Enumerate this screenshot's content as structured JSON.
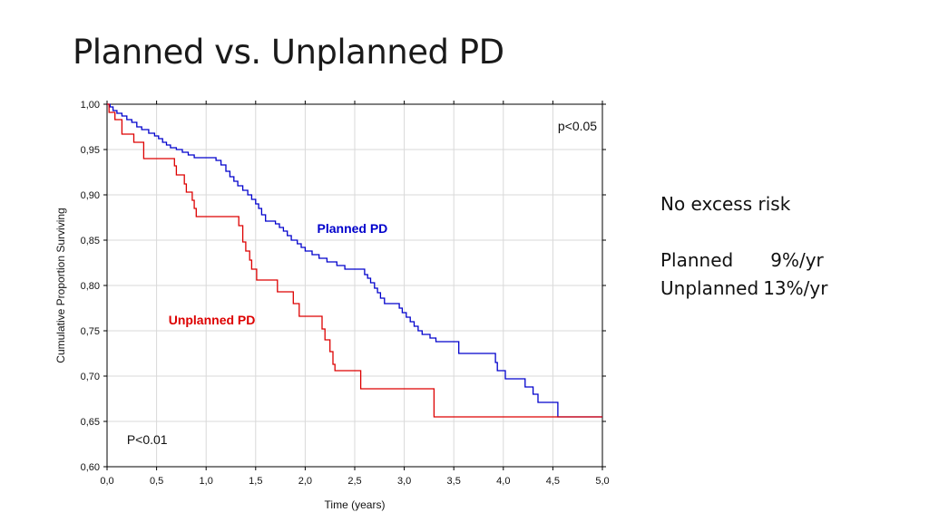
{
  "slide": {
    "title": "Planned vs. Unplanned PD"
  },
  "notes": {
    "heading": "No excess risk",
    "rows": [
      {
        "label": "Planned",
        "value": "9%/yr"
      },
      {
        "label": "Unplanned",
        "value": "13%/yr"
      }
    ]
  },
  "chart_data": {
    "type": "line",
    "step": true,
    "xlabel": "Time (years)",
    "ylabel": "Cumulative Proportion Surviving",
    "xlim": [
      0,
      5
    ],
    "ylim": [
      0.6,
      1.0
    ],
    "x_ticks": [
      "0,0",
      "0,5",
      "1,0",
      "1,5",
      "2,0",
      "2,5",
      "3,0",
      "3,5",
      "4,0",
      "4,5",
      "5,0"
    ],
    "y_ticks": [
      "0,60",
      "0,65",
      "0,70",
      "0,75",
      "0,80",
      "0,85",
      "0,90",
      "0,95",
      "1,00"
    ],
    "grid": true,
    "annotations": [
      {
        "text": "p<0.05",
        "x": 4.55,
        "y": 0.971
      },
      {
        "text": "P<0.01",
        "x": 0.2,
        "y": 0.625
      }
    ],
    "series": [
      {
        "name": "Planned PD",
        "color": "#0000cc",
        "label_pos": [
          2.12,
          0.858
        ],
        "points": [
          [
            0,
            1.0
          ],
          [
            0.03,
            0.997
          ],
          [
            0.06,
            0.993
          ],
          [
            0.1,
            0.99
          ],
          [
            0.15,
            0.987
          ],
          [
            0.2,
            0.983
          ],
          [
            0.25,
            0.98
          ],
          [
            0.3,
            0.975
          ],
          [
            0.35,
            0.972
          ],
          [
            0.42,
            0.968
          ],
          [
            0.48,
            0.965
          ],
          [
            0.52,
            0.962
          ],
          [
            0.56,
            0.958
          ],
          [
            0.6,
            0.955
          ],
          [
            0.64,
            0.952
          ],
          [
            0.7,
            0.95
          ],
          [
            0.76,
            0.947
          ],
          [
            0.82,
            0.944
          ],
          [
            0.88,
            0.941
          ],
          [
            1.1,
            0.938
          ],
          [
            1.15,
            0.933
          ],
          [
            1.2,
            0.926
          ],
          [
            1.24,
            0.92
          ],
          [
            1.28,
            0.915
          ],
          [
            1.32,
            0.91
          ],
          [
            1.37,
            0.905
          ],
          [
            1.42,
            0.9
          ],
          [
            1.46,
            0.895
          ],
          [
            1.5,
            0.89
          ],
          [
            1.53,
            0.885
          ],
          [
            1.56,
            0.878
          ],
          [
            1.6,
            0.871
          ],
          [
            1.7,
            0.868
          ],
          [
            1.74,
            0.864
          ],
          [
            1.78,
            0.86
          ],
          [
            1.82,
            0.855
          ],
          [
            1.86,
            0.85
          ],
          [
            1.92,
            0.846
          ],
          [
            1.96,
            0.842
          ],
          [
            2.0,
            0.838
          ],
          [
            2.07,
            0.834
          ],
          [
            2.14,
            0.83
          ],
          [
            2.22,
            0.826
          ],
          [
            2.32,
            0.822
          ],
          [
            2.4,
            0.818
          ],
          [
            2.6,
            0.812
          ],
          [
            2.63,
            0.808
          ],
          [
            2.66,
            0.803
          ],
          [
            2.7,
            0.797
          ],
          [
            2.73,
            0.792
          ],
          [
            2.76,
            0.786
          ],
          [
            2.8,
            0.78
          ],
          [
            2.95,
            0.775
          ],
          [
            2.98,
            0.77
          ],
          [
            3.02,
            0.765
          ],
          [
            3.06,
            0.76
          ],
          [
            3.1,
            0.755
          ],
          [
            3.14,
            0.75
          ],
          [
            3.18,
            0.746
          ],
          [
            3.26,
            0.742
          ],
          [
            3.32,
            0.738
          ],
          [
            3.55,
            0.725
          ],
          [
            3.92,
            0.715
          ],
          [
            3.94,
            0.706
          ],
          [
            4.02,
            0.697
          ],
          [
            4.22,
            0.688
          ],
          [
            4.3,
            0.68
          ],
          [
            4.35,
            0.671
          ],
          [
            4.55,
            0.655
          ],
          [
            5.0,
            0.655
          ]
        ]
      },
      {
        "name": "Unplanned PD",
        "color": "#dd0000",
        "label_pos": [
          0.62,
          0.757
        ],
        "points": [
          [
            0,
            1.0
          ],
          [
            0.02,
            0.991
          ],
          [
            0.08,
            0.983
          ],
          [
            0.15,
            0.967
          ],
          [
            0.27,
            0.958
          ],
          [
            0.37,
            0.94
          ],
          [
            0.68,
            0.932
          ],
          [
            0.7,
            0.922
          ],
          [
            0.78,
            0.912
          ],
          [
            0.8,
            0.903
          ],
          [
            0.86,
            0.894
          ],
          [
            0.88,
            0.885
          ],
          [
            0.9,
            0.876
          ],
          [
            1.33,
            0.866
          ],
          [
            1.37,
            0.848
          ],
          [
            1.4,
            0.838
          ],
          [
            1.44,
            0.828
          ],
          [
            1.46,
            0.818
          ],
          [
            1.51,
            0.806
          ],
          [
            1.72,
            0.793
          ],
          [
            1.88,
            0.78
          ],
          [
            1.94,
            0.766
          ],
          [
            2.17,
            0.752
          ],
          [
            2.2,
            0.74
          ],
          [
            2.25,
            0.727
          ],
          [
            2.28,
            0.713
          ],
          [
            2.3,
            0.706
          ],
          [
            2.56,
            0.686
          ],
          [
            3.3,
            0.655
          ],
          [
            5.0,
            0.655
          ]
        ]
      }
    ]
  }
}
